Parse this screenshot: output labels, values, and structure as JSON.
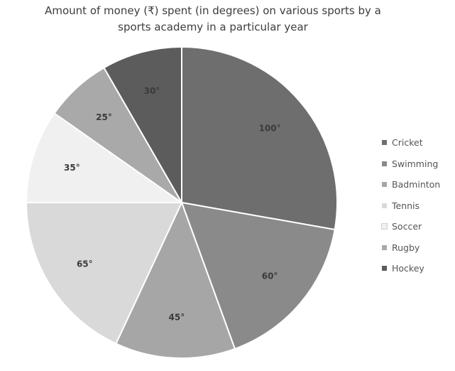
{
  "chart_data": {
    "type": "pie",
    "title_lines": [
      "Amount of money (₹) spent (in degrees) on various sports by a",
      "sports academy in a particular year"
    ],
    "unit": "°",
    "slices": [
      {
        "name": "Cricket",
        "value": 100,
        "label": "100°",
        "color": "#6e6e6e"
      },
      {
        "name": "Swimming",
        "value": 60,
        "label": "60°",
        "color": "#8a8a8a"
      },
      {
        "name": "Badminton",
        "value": 45,
        "label": "45°",
        "color": "#a6a6a6"
      },
      {
        "name": "Tennis",
        "value": 65,
        "label": "65°",
        "color": "#d9d9d9"
      },
      {
        "name": "Soccer",
        "value": 35,
        "label": "35°",
        "color": "#f0f0f0"
      },
      {
        "name": "Rugby",
        "value": 25,
        "label": "25°",
        "color": "#a9a9a9"
      },
      {
        "name": "Hockey",
        "value": 30,
        "label": "30°",
        "color": "#5c5c5c"
      }
    ],
    "legend_position": "right"
  }
}
